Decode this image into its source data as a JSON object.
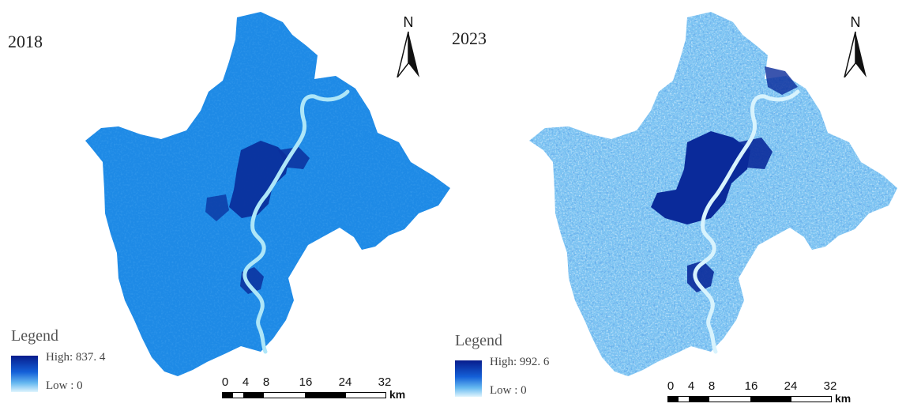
{
  "panels": [
    {
      "year": "2018",
      "north_label": "N",
      "legend": {
        "title": "Legend",
        "high_label": "High:",
        "high_value": "837. 4",
        "low_label": "Low :",
        "low_value": "0"
      },
      "scalebar": {
        "ticks": [
          "0",
          "4",
          "8",
          "16",
          "24",
          "32"
        ],
        "unit": "km"
      },
      "colors": {
        "land": "#1e8ae6",
        "urban": "#0a2f9c",
        "river": "#aee6f8"
      }
    },
    {
      "year": "2023",
      "north_label": "N",
      "legend": {
        "title": "Legend",
        "high_label": "High:",
        "high_value": "992. 6",
        "low_label": "Low :",
        "low_value": "0"
      },
      "scalebar": {
        "ticks": [
          "0",
          "4",
          "8",
          "16",
          "24",
          "32"
        ],
        "unit": "km"
      },
      "colors": {
        "land": "#7cc3f2",
        "urban": "#0a2a9a",
        "river": "#d8f3fd"
      }
    }
  ]
}
